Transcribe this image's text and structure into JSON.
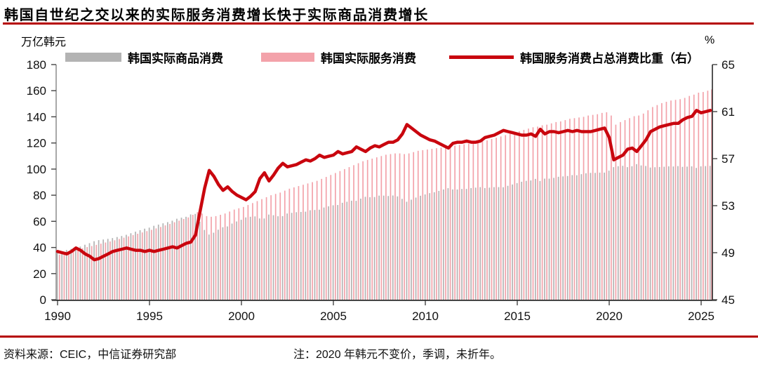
{
  "header": {
    "title": "韩国自世纪之交以来的实际服务消费增长快于实际商品消费增长",
    "left_unit": "万亿韩元",
    "right_unit": "%"
  },
  "colors": {
    "accent_rule": "#b50000",
    "goods_bar": "#b3b3b3",
    "services_bar": "#f3a2aa",
    "share_line": "#c9060e",
    "left_axis_line": "#8c8c8c",
    "dark_axis_line": "#1a1a1a",
    "tick_label": "#111111"
  },
  "legend": {
    "items": [
      {
        "label": "韩国实际商品消费",
        "type": "bar",
        "color": "#b3b3b3"
      },
      {
        "label": "韩国实际服务消费",
        "type": "bar",
        "color": "#f3a2aa"
      },
      {
        "label": "韩国服务消费占总消费比重（右）",
        "type": "line",
        "color": "#c9060e"
      }
    ]
  },
  "chart_data": {
    "type": "combo-bar-line",
    "x_start": 1990,
    "x_step_years": 0.25,
    "x_axis": {
      "ticks": [
        1990,
        1995,
        2000,
        2005,
        2010,
        2015,
        2020,
        2025
      ]
    },
    "left_axis": {
      "title": "万亿韩元",
      "range": [
        0,
        180
      ],
      "ticks": [
        0,
        20,
        40,
        60,
        80,
        100,
        120,
        140,
        160,
        180
      ]
    },
    "right_axis": {
      "title": "%",
      "range": [
        45,
        65
      ],
      "ticks": [
        45,
        49,
        53,
        57,
        61,
        65
      ]
    },
    "grid": false,
    "legend_position": "top",
    "series": [
      {
        "name": "韩国实际商品消费",
        "type": "bar",
        "axis": "left",
        "color": "#b3b3b3",
        "values": [
          35.8,
          36.9,
          38.1,
          38.9,
          39.4,
          40.7,
          42.1,
          43.3,
          44.8,
          45.6,
          46.1,
          46.6,
          47.2,
          48.0,
          48.8,
          49.7,
          50.9,
          52.1,
          53.2,
          54.4,
          55.2,
          56.6,
          57.5,
          58.5,
          59.4,
          60.5,
          62.0,
          62.8,
          63.5,
          65.3,
          65.7,
          59.7,
          53.4,
          49.9,
          51.3,
          53.6,
          55.5,
          56.1,
          58.3,
          59.9,
          61.2,
          63.0,
          63.5,
          63.8,
          62.2,
          62.2,
          65.2,
          64.7,
          63.9,
          64.0,
          66.0,
          66.5,
          67.0,
          67.2,
          67.4,
          68.5,
          68.7,
          68.9,
          70.6,
          71.5,
          72.3,
          72.5,
          74.2,
          75.0,
          75.8,
          75.7,
          77.4,
          78.8,
          78.5,
          78.6,
          79.7,
          79.7,
          79.4,
          79.8,
          79.1,
          77.2,
          75.0,
          76.6,
          78.2,
          79.6,
          80.6,
          81.6,
          82.3,
          83.3,
          84.4,
          85.4,
          84.4,
          84.4,
          84.8,
          84.8,
          85.5,
          85.8,
          86.2,
          85.5,
          85.8,
          86.2,
          86.2,
          86.1,
          87.2,
          88.2,
          89.3,
          90.3,
          91.0,
          91.3,
          92.5,
          90.9,
          92.7,
          92.7,
          93.3,
          94.1,
          94.4,
          94.7,
          95.4,
          95.3,
          96.1,
          96.8,
          97.1,
          97.1,
          97.3,
          97.3,
          98.8,
          101.5,
          102.2,
          102.5,
          101.5,
          102.2,
          103.8,
          102.8,
          102.4,
          101.2,
          101.4,
          101.6,
          101.8,
          102.1,
          102.0,
          102.3,
          101.7,
          101.9,
          102.1,
          100.9,
          102.1,
          102.3,
          102.5
        ]
      },
      {
        "name": "韩国实际服务消费",
        "type": "bar",
        "axis": "left",
        "color": "#f3a2aa",
        "values": [
          34.5,
          35.5,
          36.5,
          37.5,
          38.5,
          39.4,
          40.3,
          41.1,
          42,
          42.9,
          43.8,
          44.6,
          45.5,
          46.5,
          47.5,
          48.5,
          49.5,
          50.5,
          51.5,
          52.5,
          53.5,
          54.6,
          55.7,
          56.9,
          58,
          59.3,
          60.5,
          61.8,
          63,
          65,
          67,
          66,
          64,
          63.5,
          64,
          65,
          66,
          67.5,
          69,
          70,
          71,
          72.5,
          74,
          75.5,
          77,
          78.5,
          80,
          81,
          82,
          83.5,
          85,
          86,
          87,
          88,
          89,
          90,
          91,
          92.5,
          94,
          95.5,
          97,
          98.5,
          100,
          101.5,
          103,
          104.5,
          106,
          107,
          108,
          109,
          110,
          111,
          111.5,
          112,
          112,
          111.5,
          112,
          113,
          114,
          114.5,
          115,
          115.5,
          116,
          116.5,
          117,
          117.5,
          118,
          118.5,
          119,
          119.5,
          120,
          120.5,
          121.5,
          122,
          123,
          124,
          125,
          126,
          127,
          128,
          129,
          130,
          131,
          132,
          132.5,
          133.5,
          134,
          135,
          136,
          136.5,
          137.5,
          138.5,
          139,
          139.5,
          140,
          141,
          141.5,
          142,
          143,
          143.5,
          141,
          134,
          136,
          137.5,
          139,
          140.5,
          141,
          142.5,
          145,
          147.5,
          149,
          150.5,
          151.5,
          152.5,
          153,
          153.5,
          154.5,
          156,
          157,
          158.5,
          159,
          160,
          161
        ]
      },
      {
        "name": "韩国服务消费占总消费比重（右）",
        "type": "line",
        "axis": "right",
        "color": "#c9060e",
        "values": [
          49.1,
          49.0,
          48.9,
          49.1,
          49.4,
          49.2,
          48.9,
          48.7,
          48.4,
          48.5,
          48.7,
          48.9,
          49.1,
          49.2,
          49.3,
          49.4,
          49.3,
          49.2,
          49.2,
          49.1,
          49.2,
          49.1,
          49.2,
          49.3,
          49.4,
          49.5,
          49.4,
          49.6,
          49.8,
          49.9,
          50.5,
          52.5,
          54.5,
          56.0,
          55.5,
          54.8,
          54.3,
          54.6,
          54.2,
          53.9,
          53.7,
          53.5,
          53.8,
          54.2,
          55.3,
          55.8,
          55.1,
          55.6,
          56.2,
          56.6,
          56.3,
          56.4,
          56.5,
          56.7,
          56.9,
          56.8,
          57.0,
          57.3,
          57.1,
          57.2,
          57.3,
          57.6,
          57.4,
          57.5,
          57.6,
          58.0,
          57.8,
          57.6,
          57.9,
          58.1,
          58.0,
          58.2,
          58.4,
          58.4,
          58.6,
          59.1,
          59.9,
          59.6,
          59.3,
          59.0,
          58.8,
          58.6,
          58.5,
          58.3,
          58.1,
          57.9,
          58.3,
          58.4,
          58.4,
          58.5,
          58.4,
          58.4,
          58.5,
          58.8,
          58.9,
          59.0,
          59.2,
          59.4,
          59.3,
          59.2,
          59.1,
          59.0,
          59.0,
          59.1,
          58.9,
          59.5,
          59.1,
          59.3,
          59.3,
          59.2,
          59.3,
          59.4,
          59.3,
          59.4,
          59.3,
          59.3,
          59.3,
          59.4,
          59.5,
          59.6,
          58.8,
          56.9,
          57.1,
          57.3,
          57.8,
          57.9,
          57.6,
          58.1,
          58.6,
          59.3,
          59.5,
          59.7,
          59.8,
          59.9,
          60.0,
          60.0,
          60.3,
          60.5,
          60.6,
          61.1,
          60.9,
          61.0,
          61.1
        ]
      }
    ]
  },
  "footer": {
    "source": "资料来源：CEIC，中信证券研究部",
    "note": "注：2020 年韩元不变价，季调，未折年。"
  }
}
